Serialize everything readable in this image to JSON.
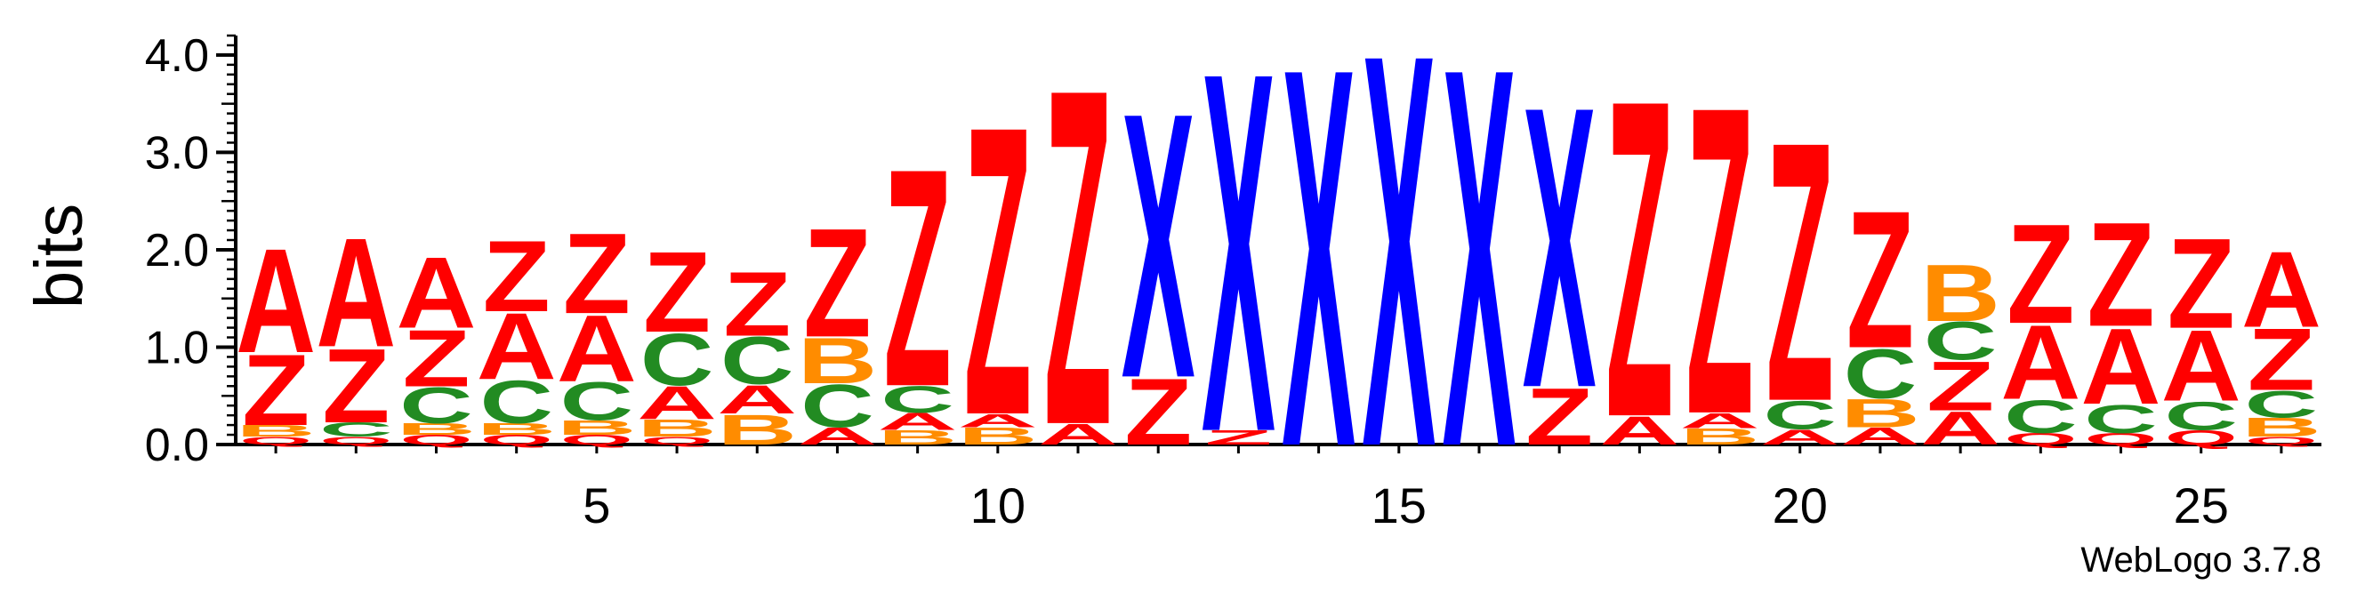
{
  "chart_data": {
    "type": "sequence-logo",
    "ylabel": "bits",
    "ylim": [
      0,
      4.2
    ],
    "yticks": [
      "0.0",
      "1.0",
      "2.0",
      "3.0",
      "4.0"
    ],
    "xticks": [
      5,
      10,
      15,
      20,
      25
    ],
    "positions": 26,
    "colors": {
      "A": "#ff0000",
      "Z": "#ff0000",
      "X": "#0000ff",
      "C": "#228b22",
      "B": "#ff8c00",
      "Q": "#ff0000"
    },
    "stacks": [
      {
        "pos": 1,
        "letters": [
          [
            "Q",
            0.08
          ],
          [
            "B",
            0.12
          ],
          [
            "Z",
            0.75
          ],
          [
            "A",
            1.1
          ]
        ]
      },
      {
        "pos": 2,
        "letters": [
          [
            "Q",
            0.08
          ],
          [
            "C",
            0.15
          ],
          [
            "Z",
            0.78
          ],
          [
            "A",
            1.15
          ]
        ]
      },
      {
        "pos": 3,
        "letters": [
          [
            "Q",
            0.1
          ],
          [
            "B",
            0.12
          ],
          [
            "C",
            0.38
          ],
          [
            "Z",
            0.6
          ],
          [
            "A",
            0.75
          ]
        ]
      },
      {
        "pos": 4,
        "letters": [
          [
            "Q",
            0.1
          ],
          [
            "B",
            0.12
          ],
          [
            "C",
            0.45
          ],
          [
            "A",
            0.7
          ],
          [
            "Z",
            0.75
          ]
        ]
      },
      {
        "pos": 5,
        "letters": [
          [
            "Q",
            0.1
          ],
          [
            "B",
            0.15
          ],
          [
            "C",
            0.4
          ],
          [
            "A",
            0.7
          ],
          [
            "Z",
            0.85
          ]
        ]
      },
      {
        "pos": 6,
        "letters": [
          [
            "Q",
            0.08
          ],
          [
            "B",
            0.18
          ],
          [
            "A",
            0.35
          ],
          [
            "C",
            0.55
          ],
          [
            "Z",
            0.85
          ]
        ]
      },
      {
        "pos": 7,
        "letters": [
          [
            "B",
            0.32
          ],
          [
            "A",
            0.3
          ],
          [
            "C",
            0.5
          ],
          [
            "Z",
            0.68
          ]
        ]
      },
      {
        "pos": 8,
        "letters": [
          [
            "A",
            0.18
          ],
          [
            "C",
            0.45
          ],
          [
            "B",
            0.48
          ],
          [
            "Z",
            1.15
          ]
        ]
      },
      {
        "pos": 9,
        "letters": [
          [
            "B",
            0.15
          ],
          [
            "A",
            0.18
          ],
          [
            "C",
            0.28
          ],
          [
            "Z",
            2.3
          ]
        ]
      },
      {
        "pos": 10,
        "letters": [
          [
            "B",
            0.18
          ],
          [
            "A",
            0.14
          ],
          [
            "Z",
            3.05
          ]
        ]
      },
      {
        "pos": 11,
        "letters": [
          [
            "A",
            0.22
          ],
          [
            "Z",
            3.55
          ]
        ]
      },
      {
        "pos": 12,
        "letters": [
          [
            "Z",
            0.7
          ],
          [
            "X",
            2.8
          ]
        ]
      },
      {
        "pos": 13,
        "letters": [
          [
            "Z",
            0.15
          ],
          [
            "X",
            3.8
          ]
        ]
      },
      {
        "pos": 14,
        "letters": [
          [
            "X",
            4.0
          ]
        ]
      },
      {
        "pos": 15,
        "letters": [
          [
            "X",
            4.15
          ]
        ]
      },
      {
        "pos": 16,
        "letters": [
          [
            "X",
            4.0
          ]
        ]
      },
      {
        "pos": 17,
        "letters": [
          [
            "Z",
            0.6
          ],
          [
            "X",
            2.97
          ]
        ]
      },
      {
        "pos": 18,
        "letters": [
          [
            "A",
            0.3
          ],
          [
            "Z",
            3.35
          ]
        ]
      },
      {
        "pos": 19,
        "letters": [
          [
            "B",
            0.17
          ],
          [
            "A",
            0.16
          ],
          [
            "Z",
            3.25
          ]
        ]
      },
      {
        "pos": 20,
        "letters": [
          [
            "A",
            0.16
          ],
          [
            "C",
            0.3
          ],
          [
            "Z",
            2.74
          ]
        ]
      },
      {
        "pos": 21,
        "letters": [
          [
            "A",
            0.18
          ],
          [
            "B",
            0.3
          ],
          [
            "C",
            0.52
          ],
          [
            "Z",
            1.45
          ]
        ]
      },
      {
        "pos": 22,
        "letters": [
          [
            "A",
            0.35
          ],
          [
            "Z",
            0.52
          ],
          [
            "C",
            0.4
          ],
          [
            "B",
            0.6
          ]
        ]
      },
      {
        "pos": 23,
        "letters": [
          [
            "Q",
            0.12
          ],
          [
            "C",
            0.35
          ],
          [
            "A",
            0.78
          ],
          [
            "Z",
            1.05
          ]
        ]
      },
      {
        "pos": 24,
        "letters": [
          [
            "Q",
            0.12
          ],
          [
            "C",
            0.3
          ],
          [
            "A",
            0.8
          ],
          [
            "Z",
            1.1
          ]
        ]
      },
      {
        "pos": 25,
        "letters": [
          [
            "Q",
            0.15
          ],
          [
            "C",
            0.3
          ],
          [
            "A",
            0.75
          ],
          [
            "Z",
            0.95
          ]
        ]
      },
      {
        "pos": 26,
        "letters": [
          [
            "Q",
            0.08
          ],
          [
            "B",
            0.2
          ],
          [
            "C",
            0.28
          ],
          [
            "Z",
            0.65
          ],
          [
            "A",
            0.8
          ]
        ]
      }
    ]
  },
  "credit": "WebLogo 3.7.8"
}
